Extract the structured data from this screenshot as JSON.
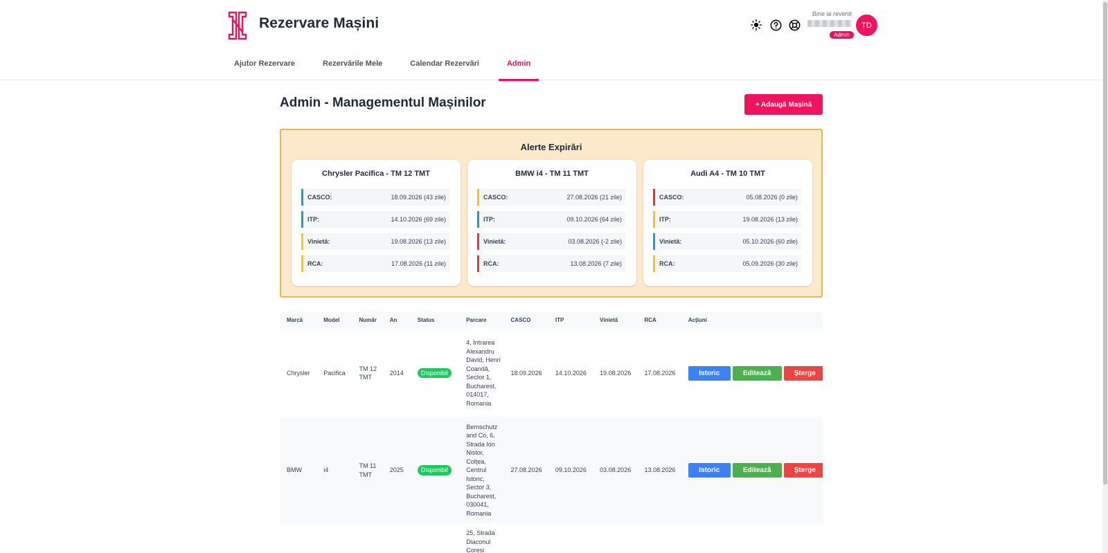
{
  "app": {
    "title": "Rezervare Mașini"
  },
  "header": {
    "welcome": "Bine ai revenit",
    "role": "Admin",
    "avatar": "TD"
  },
  "tabs": [
    {
      "label": "Ajutor Rezervare"
    },
    {
      "label": "Rezervările Mele"
    },
    {
      "label": "Calendar Rezervări"
    },
    {
      "label": "Admin",
      "active": true
    }
  ],
  "page": {
    "title": "Admin - Managementul Mașinilor",
    "add_button": "+ Adaugă Mașină"
  },
  "alerts": {
    "title": "Alerte Expirări",
    "cards": [
      {
        "title": "Chrysler Pacifica - TM 12 TMT",
        "rows": [
          {
            "label": "CASCO:",
            "value": "18.09.2026 (43 zile)",
            "color": "#17a2b8"
          },
          {
            "label": "ITP:",
            "value": "14.10.2026 (69 zile)",
            "color": "#17a2b8"
          },
          {
            "label": "Vinietă:",
            "value": "19.08.2026 (13 zile)",
            "color": "#f5c518"
          },
          {
            "label": "RCA:",
            "value": "17.08.2026 (11 zile)",
            "color": "#f5c518"
          }
        ]
      },
      {
        "title": "BMW i4 - TM 11 TMT",
        "rows": [
          {
            "label": "CASCO:",
            "value": "27.08.2026 (21 zile)",
            "color": "#f5c518"
          },
          {
            "label": "ITP:",
            "value": "09.10.2026 (64 zile)",
            "color": "#17a2b8"
          },
          {
            "label": "Vinietă:",
            "value": "03.08.2026 (-2 zile)",
            "color": "#dc3545"
          },
          {
            "label": "RCA:",
            "value": "13.08.2026 (7 zile)",
            "color": "#dc3545"
          }
        ]
      },
      {
        "title": "Audi A4 - TM 10 TMT",
        "rows": [
          {
            "label": "CASCO:",
            "value": "05.08.2026 (0 zile)",
            "color": "#dc3545"
          },
          {
            "label": "ITP:",
            "value": "19.08.2026 (13 zile)",
            "color": "#f5c518"
          },
          {
            "label": "Vinietă:",
            "value": "05.10.2026 (60 zile)",
            "color": "#17a2b8"
          },
          {
            "label": "RCA:",
            "value": "05.09.2026 (30 zile)",
            "color": "#f5c518"
          }
        ]
      }
    ]
  },
  "table": {
    "headers": [
      "Marcă",
      "Model",
      "Număr",
      "An",
      "Status",
      "Parcare",
      "CASCO",
      "ITP",
      "Vinietă",
      "RCA",
      "Acțiuni"
    ],
    "rows": [
      {
        "brand": "Chrysler",
        "model": "Pacifica",
        "number": "TM 12 TMT",
        "year": "2014",
        "status": "Disponibil",
        "parking": "4, Intrarea Alexandru David, Henri Coandă, Sector 1, Bucharest, 014017, Romania",
        "casco": "18.09.2026",
        "itp": "14.10.2026",
        "vinieta": "19.08.2026",
        "rca": "17.08.2026"
      },
      {
        "brand": "BMW",
        "model": "i4",
        "number": "TM 11 TMT",
        "year": "2025",
        "status": "Disponibil",
        "parking": "Bernschutz and Co, 6, Strada Ion Nistor, Colțea, Centrul Istoric, Sector 3, Bucharest, 030041, Romania",
        "casco": "27.08.2026",
        "itp": "09.10.2026",
        "vinieta": "03.08.2026",
        "rca": "13.08.2026"
      },
      {
        "parking": "25, Strada Diaconul Coresi"
      }
    ],
    "actions": {
      "history": "Istoric",
      "edit": "Editează",
      "delete": "Șterge"
    }
  },
  "colors": {
    "accent": "#f0145e",
    "alert_bg": "#fde9cc",
    "alert_border": "#e7b84f",
    "status_available": "#22c55e"
  }
}
